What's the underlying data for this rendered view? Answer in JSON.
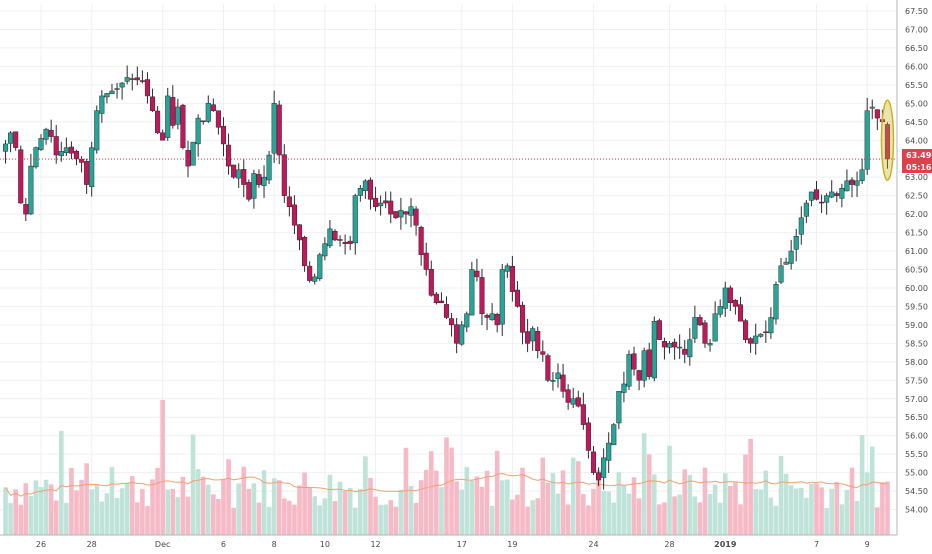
{
  "colors": {
    "up": "#26a69a",
    "down": "#c2185b",
    "volume_up": "#bfe3d9",
    "volume_down": "#f6b9c6",
    "ma_line": "#f0a070",
    "grid": "#eef0f3",
    "price_line": "#e0404c",
    "highlight": "#c9b21e",
    "badge_price_bg": "#e0404c",
    "badge_time_bg": "#e0404c"
  },
  "price_badge": {
    "price": "63.49",
    "countdown": "05:16"
  },
  "chart_data": {
    "type": "candlestick",
    "y_axis": {
      "min": 53.5,
      "max": 67.5,
      "ticks": [
        "54.00",
        "54.50",
        "55.00",
        "55.50",
        "56.00",
        "56.50",
        "57.00",
        "57.50",
        "58.00",
        "58.50",
        "59.00",
        "59.50",
        "60.00",
        "60.50",
        "61.00",
        "61.50",
        "62.00",
        "62.50",
        "63.00",
        "63.50",
        "64.00",
        "64.50",
        "65.00",
        "65.50",
        "66.00",
        "66.50",
        "67.00",
        "67.50"
      ]
    },
    "x_axis_labels": [
      {
        "label": "26",
        "bar": 7,
        "bold": false
      },
      {
        "label": "28",
        "bar": 17,
        "bold": false
      },
      {
        "label": "Dec",
        "bar": 31,
        "bold": false
      },
      {
        "label": "6",
        "bar": 43,
        "bold": false
      },
      {
        "label": "8",
        "bar": 53,
        "bold": false
      },
      {
        "label": "10",
        "bar": 63,
        "bold": false
      },
      {
        "label": "12",
        "bar": 73,
        "bold": false
      },
      {
        "label": "17",
        "bar": 90,
        "bold": false
      },
      {
        "label": "19",
        "bar": 100,
        "bold": false
      },
      {
        "label": "24",
        "bar": 116,
        "bold": false
      },
      {
        "label": "28",
        "bar": 131,
        "bold": false
      },
      {
        "label": "2019",
        "bar": 142,
        "bold": true
      },
      {
        "label": "7",
        "bar": 160,
        "bold": false
      },
      {
        "label": "9",
        "bar": 170,
        "bold": false
      }
    ],
    "current_price": 63.49,
    "volume_ma_window": 20,
    "anchors": [
      [
        0,
        63.9
      ],
      [
        1,
        64.2
      ],
      [
        2,
        63.8
      ],
      [
        3,
        62.3
      ],
      [
        4,
        62.0
      ],
      [
        5,
        63.3
      ],
      [
        6,
        63.8
      ],
      [
        8,
        64.3
      ],
      [
        9,
        64.1
      ],
      [
        10,
        63.6
      ],
      [
        12,
        63.8
      ],
      [
        14,
        63.5
      ],
      [
        15,
        63.4
      ],
      [
        16,
        62.8
      ],
      [
        18,
        64.8
      ],
      [
        19,
        65.2
      ],
      [
        22,
        65.4
      ],
      [
        24,
        65.7
      ],
      [
        27,
        65.6
      ],
      [
        29,
        64.8
      ],
      [
        30,
        64.2
      ],
      [
        31,
        64.0
      ],
      [
        32,
        65.2
      ],
      [
        33,
        64.4
      ],
      [
        34,
        64.9
      ],
      [
        35,
        63.8
      ],
      [
        36,
        63.3
      ],
      [
        38,
        64.6
      ],
      [
        39,
        64.5
      ],
      [
        40,
        65.0
      ],
      [
        41,
        64.8
      ],
      [
        43,
        63.9
      ],
      [
        44,
        63.3
      ],
      [
        45,
        63.0
      ],
      [
        46,
        63.2
      ],
      [
        48,
        62.4
      ],
      [
        49,
        63.1
      ],
      [
        50,
        62.8
      ],
      [
        51,
        63.0
      ],
      [
        52,
        63.6
      ],
      [
        53,
        65.0
      ],
      [
        54,
        63.6
      ],
      [
        55,
        62.5
      ],
      [
        56,
        62.2
      ],
      [
        57,
        61.7
      ],
      [
        58,
        61.3
      ],
      [
        59,
        60.6
      ],
      [
        60,
        60.2
      ],
      [
        61,
        60.3
      ],
      [
        62,
        60.9
      ],
      [
        63,
        61.2
      ],
      [
        64,
        61.6
      ],
      [
        65,
        61.3
      ],
      [
        66,
        61.3
      ],
      [
        67,
        61.2
      ],
      [
        68,
        61.2
      ],
      [
        69,
        62.5
      ],
      [
        70,
        62.7
      ],
      [
        71,
        62.9
      ],
      [
        72,
        62.4
      ],
      [
        73,
        62.2
      ],
      [
        74,
        62.3
      ],
      [
        75,
        62.3
      ],
      [
        76,
        62.0
      ],
      [
        77,
        61.9
      ],
      [
        78,
        62.1
      ],
      [
        79,
        62.0
      ],
      [
        80,
        62.2
      ],
      [
        81,
        61.7
      ],
      [
        82,
        60.9
      ],
      [
        83,
        60.5
      ],
      [
        84,
        59.8
      ],
      [
        85,
        59.6
      ],
      [
        86,
        59.6
      ],
      [
        87,
        59.2
      ],
      [
        88,
        59.0
      ],
      [
        89,
        58.5
      ],
      [
        90,
        59.0
      ],
      [
        91,
        59.3
      ],
      [
        92,
        60.5
      ],
      [
        93,
        60.3
      ],
      [
        94,
        59.3
      ],
      [
        95,
        59.2
      ],
      [
        96,
        59.3
      ],
      [
        97,
        59.0
      ],
      [
        98,
        60.5
      ],
      [
        99,
        60.6
      ],
      [
        100,
        59.9
      ],
      [
        101,
        59.5
      ],
      [
        102,
        58.8
      ],
      [
        103,
        58.5
      ],
      [
        104,
        58.9
      ],
      [
        105,
        58.3
      ],
      [
        106,
        58.2
      ],
      [
        107,
        57.5
      ],
      [
        108,
        57.5
      ],
      [
        109,
        57.7
      ],
      [
        110,
        57.2
      ],
      [
        111,
        56.9
      ],
      [
        112,
        57.0
      ],
      [
        113,
        56.8
      ],
      [
        114,
        56.3
      ],
      [
        115,
        55.6
      ],
      [
        116,
        55.0
      ],
      [
        117,
        54.8
      ],
      [
        118,
        55.4
      ],
      [
        119,
        55.8
      ],
      [
        120,
        56.3
      ],
      [
        121,
        57.2
      ],
      [
        122,
        57.4
      ],
      [
        123,
        58.2
      ],
      [
        124,
        57.8
      ],
      [
        125,
        57.5
      ],
      [
        126,
        58.3
      ],
      [
        127,
        57.6
      ],
      [
        128,
        59.1
      ],
      [
        129,
        58.6
      ],
      [
        130,
        58.4
      ],
      [
        131,
        58.5
      ],
      [
        132,
        58.4
      ],
      [
        133,
        58.4
      ],
      [
        134,
        58.2
      ],
      [
        135,
        58.6
      ],
      [
        136,
        59.2
      ],
      [
        137,
        59.0
      ],
      [
        138,
        58.5
      ],
      [
        139,
        58.5
      ],
      [
        140,
        59.3
      ],
      [
        141,
        59.5
      ],
      [
        142,
        60.0
      ],
      [
        143,
        59.6
      ],
      [
        144,
        59.5
      ],
      [
        145,
        59.1
      ],
      [
        146,
        58.6
      ],
      [
        147,
        58.5
      ],
      [
        148,
        58.7
      ],
      [
        150,
        58.8
      ],
      [
        151,
        59.2
      ],
      [
        152,
        60.1
      ],
      [
        153,
        60.6
      ],
      [
        154,
        60.7
      ],
      [
        155,
        61.0
      ],
      [
        156,
        61.4
      ],
      [
        157,
        61.9
      ],
      [
        158,
        62.3
      ],
      [
        159,
        62.6
      ],
      [
        160,
        62.4
      ],
      [
        161,
        62.3
      ],
      [
        162,
        62.5
      ],
      [
        163,
        62.6
      ],
      [
        164,
        62.5
      ],
      [
        165,
        62.7
      ],
      [
        166,
        62.9
      ],
      [
        167,
        62.8
      ],
      [
        168,
        62.9
      ],
      [
        169,
        63.2
      ],
      [
        170,
        64.8
      ],
      [
        171,
        64.9
      ],
      [
        172,
        64.6
      ],
      [
        173,
        64.5
      ],
      [
        174,
        63.5
      ]
    ]
  }
}
